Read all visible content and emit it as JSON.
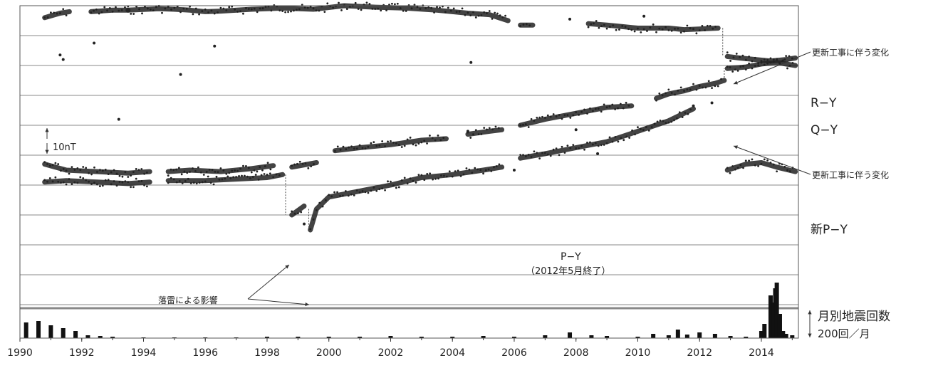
{
  "chart_data": {
    "type": "scatter",
    "x_axis": {
      "min": 1990,
      "max": 2015.2,
      "tick_labels": [
        "1990",
        "1992",
        "1994",
        "1996",
        "1998",
        "2000",
        "2002",
        "2004",
        "2006",
        "2008",
        "2010",
        "2012",
        "2014"
      ]
    },
    "grid": "horizontal",
    "series": [
      {
        "name": "R−Y",
        "color": "#222222",
        "segments": [
          [
            [
              1990.8,
              -4.0
            ],
            [
              1991.3,
              -2.5
            ],
            [
              1991.6,
              -2.0
            ]
          ],
          [
            [
              1992.3,
              -2.0
            ],
            [
              1993.0,
              -1.5
            ],
            [
              1993.5,
              -1.5
            ]
          ],
          [
            [
              1993.5,
              -1.5
            ],
            [
              1994.5,
              -1.0
            ],
            [
              1995.0,
              -1.2
            ],
            [
              1995.5,
              -1.5
            ],
            [
              1996.0,
              -2.0
            ],
            [
              1996.5,
              -1.8
            ],
            [
              1997.5,
              -1.2
            ],
            [
              1998.5,
              -0.8
            ],
            [
              1999.5,
              -1.2
            ],
            [
              2000.5,
              0.0
            ],
            [
              2001.5,
              -0.5
            ],
            [
              2002.5,
              -0.8
            ],
            [
              2003.5,
              -1.5
            ],
            [
              2004.5,
              -2.5
            ],
            [
              2005.2,
              -3.0
            ],
            [
              2005.8,
              -5.0
            ]
          ],
          [
            [
              2006.2,
              -6.5
            ],
            [
              2006.6,
              -6.5
            ]
          ],
          [
            [
              2008.4,
              -6.0
            ],
            [
              2009.0,
              -6.5
            ],
            [
              2009.5,
              -7.0
            ],
            [
              2010.0,
              -7.5
            ],
            [
              2010.5,
              -7.5
            ],
            [
              2011.0,
              -7.5
            ],
            [
              2011.5,
              -8.0
            ],
            [
              2012.0,
              -7.8
            ],
            [
              2012.6,
              -7.5
            ]
          ],
          [
            [
              2012.9,
              -17.0
            ],
            [
              2013.3,
              -17.5
            ],
            [
              2013.8,
              -18.0
            ],
            [
              2014.3,
              -18.5
            ],
            [
              2014.8,
              -18.0
            ],
            [
              2015.1,
              -17.5
            ]
          ]
        ],
        "outliers": [
          [
            1991.3,
            -16.5
          ],
          [
            1991.4,
            -18.0
          ],
          [
            1992.4,
            7.0
          ],
          [
            1992.4,
            -12.5
          ],
          [
            1995.2,
            7.0
          ],
          [
            1995.2,
            -23.0
          ],
          [
            1996.3,
            6.5
          ],
          [
            1996.3,
            -13.5
          ],
          [
            2004.6,
            -19.0
          ],
          [
            2007.8,
            -4.5
          ],
          [
            2010.2,
            -3.5
          ]
        ]
      },
      {
        "name": "Q−Y",
        "color": "#222222",
        "segments": [
          [
            [
              1990.8,
              -53.0
            ],
            [
              1991.5,
              -55.0
            ],
            [
              1992.5,
              -55.5
            ],
            [
              1993.5,
              -56.0
            ],
            [
              1994.2,
              -55.5
            ]
          ],
          [
            [
              1994.8,
              -55.5
            ],
            [
              1995.5,
              -55.0
            ],
            [
              1996.5,
              -55.5
            ],
            [
              1997.5,
              -54.5
            ],
            [
              1998.2,
              -53.5
            ]
          ],
          [
            [
              1998.8,
              -54.0
            ],
            [
              1999.6,
              -52.5
            ]
          ],
          [
            [
              2000.2,
              -48.5
            ],
            [
              2001.0,
              -47.5
            ],
            [
              2002.0,
              -46.5
            ],
            [
              2003.0,
              -45.0
            ],
            [
              2003.8,
              -44.5
            ]
          ],
          [
            [
              2004.5,
              -43.0
            ],
            [
              2005.2,
              -42.0
            ],
            [
              2005.6,
              -41.5
            ]
          ],
          [
            [
              2006.2,
              -40.0
            ],
            [
              2007.0,
              -38.0
            ],
            [
              2008.0,
              -36.0
            ],
            [
              2009.0,
              -34.0
            ],
            [
              2009.8,
              -33.5
            ]
          ],
          [
            [
              2010.6,
              -31.0
            ],
            [
              2011.0,
              -29.5
            ],
            [
              2011.5,
              -28.5
            ],
            [
              2012.0,
              -27.0
            ],
            [
              2012.5,
              -26.0
            ],
            [
              2012.8,
              -25.0
            ]
          ],
          [
            [
              2012.9,
              -21.0
            ],
            [
              2013.5,
              -20.5
            ],
            [
              2014.0,
              -19.5
            ],
            [
              2014.5,
              -19.0
            ],
            [
              2015.1,
              -20.0
            ]
          ]
        ],
        "outliers": [
          [
            1993.2,
            -38.0
          ],
          [
            2004.5,
            -42.0
          ],
          [
            2008.0,
            -41.5
          ]
        ]
      },
      {
        "name": "新P−Y",
        "color": "#222222",
        "segments": [
          [
            [
              2012.9,
              -55.0
            ],
            [
              2013.5,
              -53.0
            ],
            [
              2014.0,
              -52.5
            ],
            [
              2014.5,
              -54.0
            ],
            [
              2015.1,
              -55.5
            ]
          ]
        ],
        "outliers": []
      },
      {
        "name": "P−Y",
        "color": "#222222",
        "segments": [
          [
            [
              1990.8,
              -59.0
            ],
            [
              1991.5,
              -58.5
            ],
            [
              1992.5,
              -59.0
            ],
            [
              1993.5,
              -59.5
            ],
            [
              1994.2,
              -59.0
            ]
          ],
          [
            [
              1994.8,
              -58.5
            ],
            [
              1996.0,
              -58.5
            ],
            [
              1997.0,
              -58.0
            ],
            [
              1998.0,
              -57.5
            ],
            [
              1998.5,
              -56.5
            ]
          ],
          [
            [
              1998.8,
              -70.0
            ],
            [
              1999.2,
              -67.0
            ]
          ],
          [
            [
              1999.4,
              -75.0
            ],
            [
              1999.6,
              -68.0
            ],
            [
              2000.0,
              -64.0
            ],
            [
              2001.0,
              -62.0
            ],
            [
              2002.0,
              -60.0
            ],
            [
              2003.0,
              -57.5
            ],
            [
              2004.0,
              -56.5
            ],
            [
              2005.0,
              -55.0
            ],
            [
              2005.6,
              -54.0
            ]
          ],
          [
            [
              2006.2,
              -51.0
            ],
            [
              2007.0,
              -49.5
            ],
            [
              2008.0,
              -47.5
            ],
            [
              2009.0,
              -45.5
            ],
            [
              2010.0,
              -42.0
            ],
            [
              2011.0,
              -38.5
            ],
            [
              2011.8,
              -34.5
            ]
          ]
        ],
        "outliers": [
          [
            2011.8,
            -33.5
          ],
          [
            2012.4,
            -32.5
          ],
          [
            1999.2,
            -73.0
          ],
          [
            2006.0,
            -55.0
          ],
          [
            2008.7,
            -49.5
          ]
        ]
      }
    ],
    "earthquake_counts": {
      "label": "月別地震回数",
      "scale_label": "200回／月",
      "x": [
        1990.2,
        1990.6,
        1991.0,
        1991.4,
        1991.8,
        1992.2,
        1992.6,
        1993.0,
        1994.0,
        1995.0,
        1996.0,
        1997.0,
        1998.0,
        1999.0,
        2000.0,
        2001.0,
        2002.0,
        2003.0,
        2004.0,
        2005.0,
        2006.0,
        2007.0,
        2007.8,
        2008.5,
        2009.0,
        2010.0,
        2010.5,
        2011.0,
        2011.3,
        2011.6,
        2012.0,
        2012.5,
        2013.0,
        2013.5,
        2014.0,
        2014.1,
        2014.3,
        2014.4,
        2014.45,
        2014.5,
        2014.6,
        2014.7,
        2014.8,
        2015.0
      ],
      "values": [
        110,
        120,
        90,
        70,
        50,
        20,
        15,
        10,
        5,
        5,
        5,
        5,
        10,
        10,
        10,
        10,
        15,
        10,
        10,
        15,
        10,
        20,
        40,
        20,
        15,
        10,
        30,
        20,
        60,
        25,
        40,
        30,
        15,
        10,
        50,
        100,
        300,
        250,
        350,
        390,
        170,
        50,
        30,
        20
      ]
    },
    "annotations": [
      {
        "text": "更新工事に伴う変化",
        "x": 2012.8,
        "y": -9.0
      },
      {
        "text": "更新工事に伴う変化",
        "x": 2012.8,
        "y": -24.0
      },
      {
        "text": "落雷による影響",
        "x": 1998.7,
        "y": -73.0
      },
      {
        "text": "P−Y",
        "x": 2008.5,
        "y": -61.5
      },
      {
        "text": "（2012年5月終了）",
        "x": 2008.5,
        "y": -64.5
      },
      {
        "text": "10nT",
        "x": 1991.3,
        "y": -23.5
      }
    ]
  }
}
